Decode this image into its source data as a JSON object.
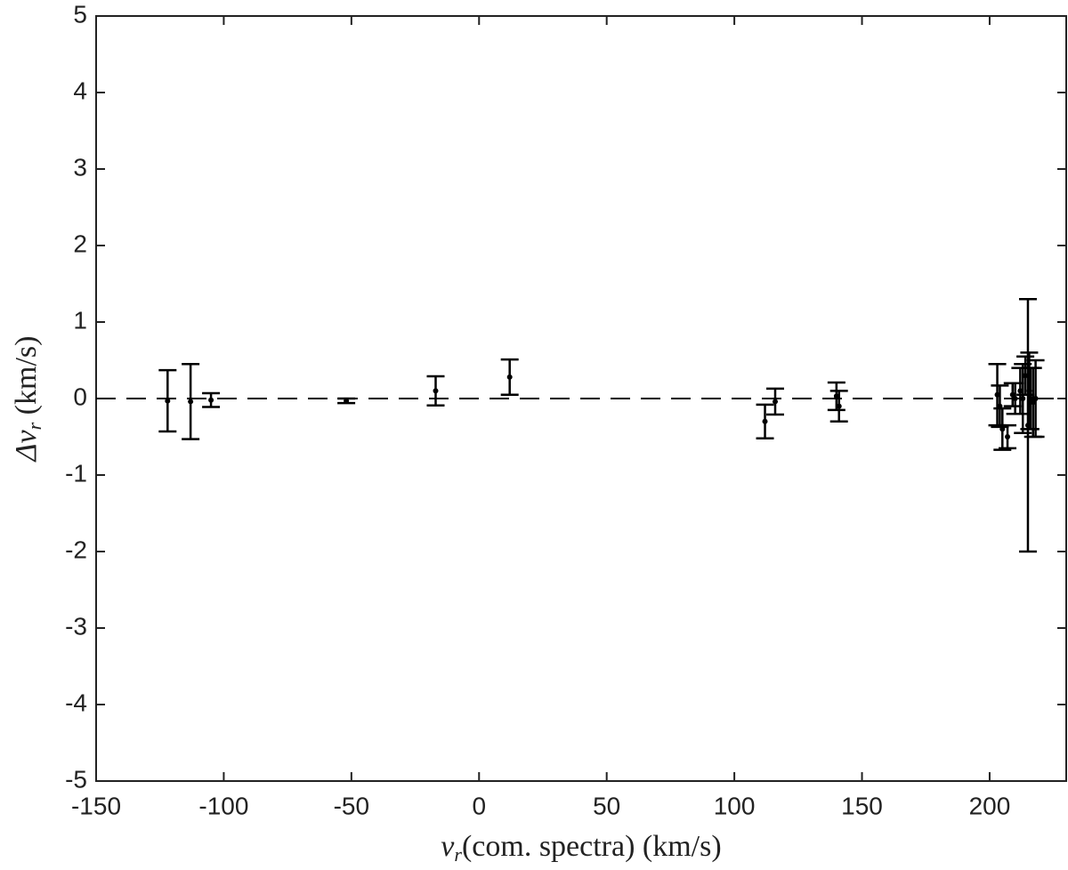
{
  "chart_data": {
    "type": "errorbar",
    "xlabel": [
      "v",
      "r",
      "(com. spectra) (km/s)"
    ],
    "ylabel": [
      "Δv",
      "r",
      " (km/s)"
    ],
    "xlim": [
      -150,
      230
    ],
    "ylim": [
      -5,
      5
    ],
    "xticks": [
      -150,
      -100,
      -50,
      0,
      50,
      100,
      150,
      200
    ],
    "yticks": [
      -5,
      -4,
      -3,
      -2,
      -1,
      0,
      1,
      2,
      3,
      4,
      5
    ],
    "ref_line": 0,
    "color": "#000000",
    "x": [
      -122,
      -113,
      -105,
      -52,
      -17,
      12,
      112,
      116,
      140,
      141,
      203,
      204,
      205,
      207,
      209,
      210,
      212,
      213,
      214,
      215,
      215.5,
      216,
      217,
      218
    ],
    "values": [
      -0.03,
      -0.04,
      -0.02,
      -0.03,
      0.1,
      0.28,
      -0.3,
      -0.04,
      0.03,
      -0.1,
      0.05,
      -0.1,
      -0.4,
      -0.5,
      0.05,
      0.0,
      0.1,
      0.0,
      0.3,
      -0.35,
      0.1,
      0.0,
      -0.05,
      0.0
    ],
    "errors": [
      0.4,
      0.49,
      0.09,
      0.03,
      0.19,
      0.23,
      0.22,
      0.17,
      0.18,
      0.2,
      0.4,
      0.27,
      0.27,
      0.15,
      0.15,
      0.2,
      0.3,
      0.45,
      0.25,
      1.65,
      0.5,
      0.4,
      0.45,
      0.5
    ]
  }
}
